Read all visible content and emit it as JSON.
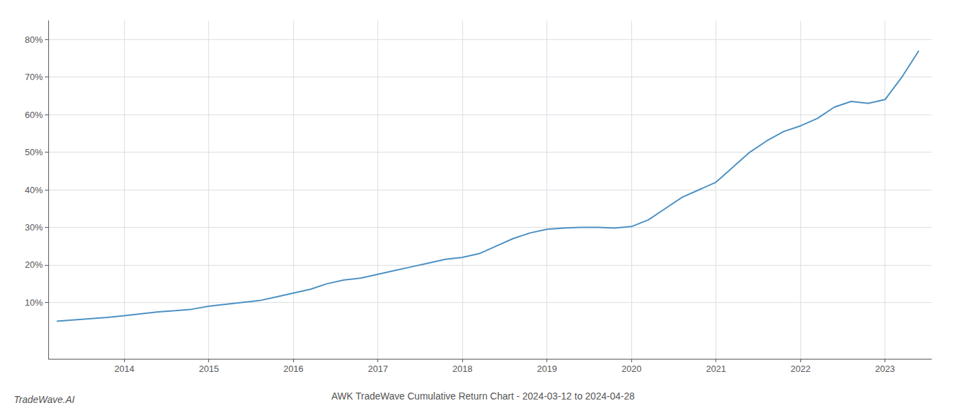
{
  "chart_data": {
    "type": "line",
    "title": "AWK TradeWave Cumulative Return Chart - 2024-03-12 to 2024-04-28",
    "annotations": [
      "TradeWave.AI"
    ],
    "color": "#4a90c4",
    "x": [
      2013.2,
      2013.5,
      2013.8,
      2014.0,
      2014.2,
      2014.4,
      2014.6,
      2014.8,
      2015.0,
      2015.2,
      2015.4,
      2015.6,
      2015.8,
      2016.0,
      2016.2,
      2016.4,
      2016.6,
      2016.8,
      2017.0,
      2017.2,
      2017.4,
      2017.6,
      2017.8,
      2018.0,
      2018.2,
      2018.4,
      2018.6,
      2018.8,
      2019.0,
      2019.2,
      2019.4,
      2019.6,
      2019.8,
      2020.0,
      2020.2,
      2020.4,
      2020.6,
      2020.8,
      2021.0,
      2021.2,
      2021.4,
      2021.6,
      2021.8,
      2022.0,
      2022.2,
      2022.4,
      2022.6,
      2022.8,
      2023.0,
      2023.2,
      2023.4
    ],
    "values": [
      5.0,
      5.5,
      6.0,
      6.5,
      7.0,
      7.5,
      7.8,
      8.2,
      9.0,
      9.5,
      10.0,
      10.5,
      11.5,
      12.5,
      13.5,
      15.0,
      16.0,
      16.5,
      17.5,
      18.5,
      19.5,
      20.5,
      21.5,
      22.0,
      23.0,
      25.0,
      27.0,
      28.5,
      29.5,
      29.8,
      30.0,
      30.0,
      29.8,
      30.2,
      32.0,
      35.0,
      38.0,
      40.0,
      42.0,
      46.0,
      50.0,
      53.0,
      55.5,
      57.0,
      59.0,
      62.0,
      63.5,
      63.0,
      64.0,
      70.0,
      77.0
    ],
    "xlim": [
      2013.1,
      2023.55
    ],
    "xticks": [
      2014,
      2015,
      2016,
      2017,
      2018,
      2019,
      2020,
      2021,
      2022,
      2023
    ],
    "ylim": [
      -5,
      85
    ],
    "yticks": [
      {
        "value": 10,
        "label": "10%"
      },
      {
        "value": 20,
        "label": "20%"
      },
      {
        "value": 30,
        "label": "30%"
      },
      {
        "value": 40,
        "label": "40%"
      },
      {
        "value": 50,
        "label": "50%"
      },
      {
        "value": 60,
        "label": "60%"
      },
      {
        "value": 70,
        "label": "70%"
      },
      {
        "value": 80,
        "label": "80%"
      }
    ],
    "grid": true
  }
}
